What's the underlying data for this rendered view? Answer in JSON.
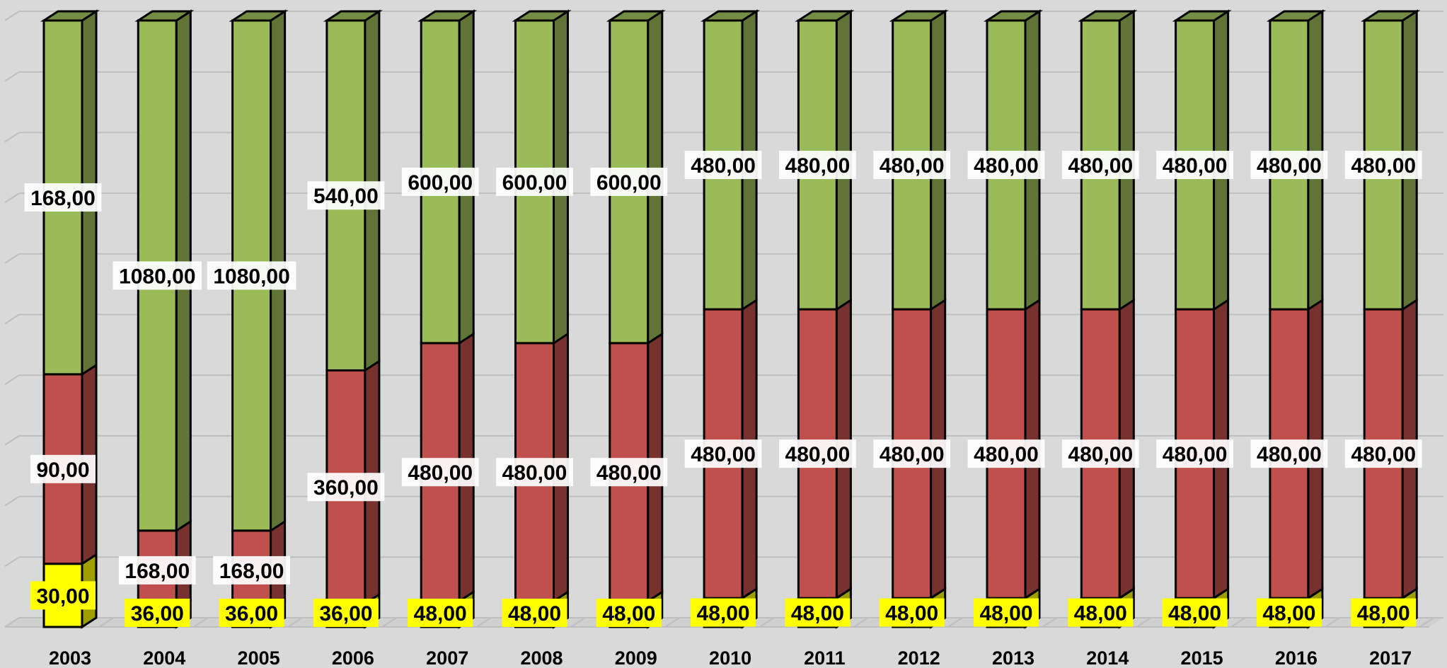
{
  "chart_data": {
    "type": "bar",
    "stacked": true,
    "percent_stacked": true,
    "three_d": true,
    "grid": true,
    "legend": "none",
    "title": "",
    "xlabel": "",
    "ylabel": "",
    "categories": [
      "2003",
      "2004",
      "2005",
      "2006",
      "2007",
      "2008",
      "2009",
      "2010",
      "2011",
      "2012",
      "2013",
      "2014",
      "2015",
      "2016",
      "2017"
    ],
    "series": [
      {
        "color": "#ffff00",
        "values": [
          30,
          36,
          36,
          36,
          48,
          48,
          48,
          48,
          48,
          48,
          48,
          48,
          48,
          48,
          48
        ],
        "labels": [
          "30,00",
          "36,00",
          "36,00",
          "36,00",
          "48,00",
          "48,00",
          "48,00",
          "48,00",
          "48,00",
          "48,00",
          "48,00",
          "48,00",
          "48,00",
          "48,00",
          "48,00"
        ]
      },
      {
        "color": "#c0504d",
        "values": [
          90,
          168,
          168,
          360,
          480,
          480,
          480,
          480,
          480,
          480,
          480,
          480,
          480,
          480,
          480
        ],
        "labels": [
          "90,00",
          "168,00",
          "168,00",
          "360,00",
          "480,00",
          "480,00",
          "480,00",
          "480,00",
          "480,00",
          "480,00",
          "480,00",
          "480,00",
          "480,00",
          "480,00",
          "480,00"
        ]
      },
      {
        "color": "#9bbb59",
        "values": [
          168,
          1080,
          1080,
          540,
          600,
          600,
          600,
          480,
          480,
          480,
          480,
          480,
          480,
          480,
          480
        ],
        "labels": [
          "168,00",
          "1080,00",
          "1080,00",
          "540,00",
          "600,00",
          "600,00",
          "600,00",
          "480,00",
          "480,00",
          "480,00",
          "480,00",
          "480,00",
          "480,00",
          "480,00",
          "480,00"
        ]
      }
    ]
  }
}
